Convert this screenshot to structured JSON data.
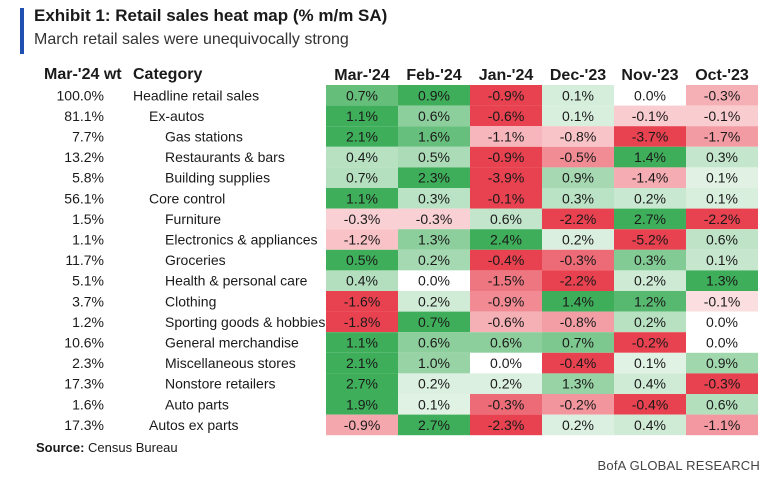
{
  "exhibit": {
    "title": "Exhibit 1: Retail sales heat map (% m/m SA)",
    "subtitle": "March retail sales were unequivocally strong"
  },
  "headers": {
    "weight": "Mar-'24 wt",
    "category": "Category"
  },
  "colors": {
    "accent": "#1f4fb0",
    "positive_strong": "#3fae5a",
    "negative_strong": "#e8414f",
    "neutral": "#ffffff"
  },
  "chart_data": {
    "type": "heatmap",
    "title": "Exhibit 1: Retail sales heat map (% m/m SA)",
    "subtitle": "March retail sales were unequivocally strong",
    "columns": [
      "Mar-'24",
      "Feb-'24",
      "Jan-'24",
      "Dec-'23",
      "Nov-'23",
      "Oct-'23"
    ],
    "rows": [
      {
        "weight": "100.0%",
        "category": "Headline retail sales",
        "indent": 0,
        "values": [
          "0.7%",
          "0.9%",
          "-0.9%",
          "0.1%",
          "0.0%",
          "-0.3%"
        ]
      },
      {
        "weight": "81.1%",
        "category": "Ex-autos",
        "indent": 1,
        "values": [
          "1.1%",
          "0.6%",
          "-0.6%",
          "0.1%",
          "-0.1%",
          "-0.1%"
        ]
      },
      {
        "weight": "7.7%",
        "category": "Gas stations",
        "indent": 2,
        "values": [
          "2.1%",
          "1.6%",
          "-1.1%",
          "-0.8%",
          "-3.7%",
          "-1.7%"
        ]
      },
      {
        "weight": "13.2%",
        "category": "Restaurants & bars",
        "indent": 2,
        "values": [
          "0.4%",
          "0.5%",
          "-0.9%",
          "-0.5%",
          "1.4%",
          "0.3%"
        ]
      },
      {
        "weight": "5.8%",
        "category": "Building supplies",
        "indent": 2,
        "values": [
          "0.7%",
          "2.3%",
          "-3.9%",
          "0.9%",
          "-1.4%",
          "0.1%"
        ]
      },
      {
        "weight": "56.1%",
        "category": "Core control",
        "indent": 1,
        "values": [
          "1.1%",
          "0.3%",
          "-0.1%",
          "0.3%",
          "0.2%",
          "0.1%"
        ]
      },
      {
        "weight": "1.5%",
        "category": "Furniture",
        "indent": 2,
        "values": [
          "-0.3%",
          "-0.3%",
          "0.6%",
          "-2.2%",
          "2.7%",
          "-2.2%"
        ]
      },
      {
        "weight": "1.1%",
        "category": "Electronics & appliances",
        "indent": 2,
        "values": [
          "-1.2%",
          "1.3%",
          "2.4%",
          "0.2%",
          "-5.2%",
          "0.6%"
        ]
      },
      {
        "weight": "11.7%",
        "category": "Groceries",
        "indent": 2,
        "values": [
          "0.5%",
          "0.2%",
          "-0.4%",
          "-0.3%",
          "0.3%",
          "0.1%"
        ]
      },
      {
        "weight": "5.1%",
        "category": "Health & personal care",
        "indent": 2,
        "values": [
          "0.4%",
          "0.0%",
          "-1.5%",
          "-2.2%",
          "0.2%",
          "1.3%"
        ]
      },
      {
        "weight": "3.7%",
        "category": "Clothing",
        "indent": 2,
        "values": [
          "-1.6%",
          "0.2%",
          "-0.9%",
          "1.4%",
          "1.2%",
          "-0.1%"
        ]
      },
      {
        "weight": "1.2%",
        "category": "Sporting goods & hobbies",
        "indent": 2,
        "values": [
          "-1.8%",
          "0.7%",
          "-0.6%",
          "-0.8%",
          "0.2%",
          "0.0%"
        ]
      },
      {
        "weight": "10.6%",
        "category": "General merchandise",
        "indent": 2,
        "values": [
          "1.1%",
          "0.6%",
          "0.6%",
          "0.7%",
          "-0.2%",
          "0.0%"
        ]
      },
      {
        "weight": "2.3%",
        "category": "Miscellaneous stores",
        "indent": 2,
        "values": [
          "2.1%",
          "1.0%",
          "0.0%",
          "-0.4%",
          "0.1%",
          "0.9%"
        ]
      },
      {
        "weight": "17.3%",
        "category": "Nonstore retailers",
        "indent": 2,
        "values": [
          "2.7%",
          "0.2%",
          "0.2%",
          "1.3%",
          "0.4%",
          "-0.3%"
        ]
      },
      {
        "weight": "1.6%",
        "category": "Auto parts",
        "indent": 2,
        "values": [
          "1.9%",
          "0.1%",
          "-0.3%",
          "-0.2%",
          "-0.4%",
          "0.6%"
        ]
      },
      {
        "weight": "17.3%",
        "category": "Autos ex parts",
        "indent": 1,
        "values": [
          "-0.9%",
          "2.7%",
          "-2.3%",
          "0.2%",
          "0.4%",
          "-1.1%"
        ]
      }
    ]
  },
  "source": {
    "label": "Source:",
    "text": "Census Bureau"
  },
  "brand": "BofA GLOBAL RESEARCH"
}
